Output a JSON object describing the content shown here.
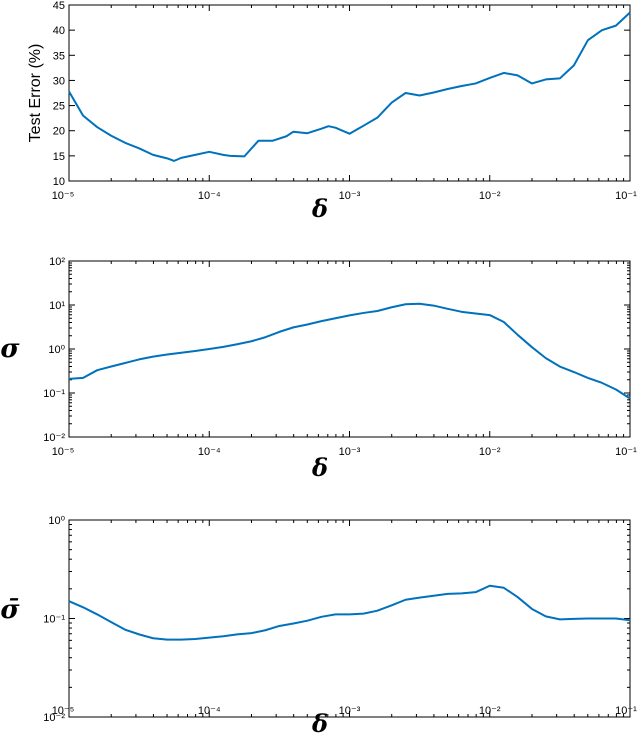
{
  "chart_data": [
    {
      "type": "line",
      "xscale": "log",
      "yscale": "linear",
      "xlim": [
        1e-05,
        0.1
      ],
      "ylim": [
        10,
        45
      ],
      "yticks": [
        "10",
        "15",
        "20",
        "25",
        "30",
        "35",
        "40",
        "45"
      ],
      "xlabel": "δ",
      "ylabel": "Test Error (%)",
      "series": [
        {
          "color": "#0072BD",
          "x": [
            1e-05,
            1.26e-05,
            1.59e-05,
            2e-05,
            2.51e-05,
            3.16e-05,
            3.98e-05,
            5.01e-05,
            5.62e-05,
            6.31e-05,
            7.94e-05,
            0.0001,
            0.000126,
            0.000141,
            0.000178,
            0.000224,
            0.000282,
            0.000355,
            0.000398,
            0.000501,
            0.000631,
            0.000708,
            0.000794,
            0.001,
            0.00126,
            0.00158,
            0.002,
            0.00251,
            0.00316,
            0.00398,
            0.00501,
            0.00631,
            0.00794,
            0.01,
            0.0126,
            0.0158,
            0.02,
            0.0251,
            0.0316,
            0.0398,
            0.0501,
            0.0631,
            0.0794,
            0.1
          ],
          "y": [
            27.8,
            23.0,
            20.7,
            19.0,
            17.6,
            16.5,
            15.2,
            14.5,
            14.0,
            14.6,
            15.2,
            15.8,
            15.2,
            15.0,
            14.9,
            18.0,
            18.0,
            18.9,
            19.8,
            19.5,
            20.4,
            20.9,
            20.6,
            19.4,
            21.0,
            22.6,
            25.6,
            27.5,
            27.0,
            27.6,
            28.3,
            28.9,
            29.4,
            30.5,
            31.5,
            31.0,
            29.4,
            30.2,
            30.4,
            33.0,
            38.0,
            40.0,
            40.9,
            43.5
          ]
        }
      ]
    },
    {
      "type": "line",
      "xscale": "log",
      "yscale": "log",
      "xlim": [
        1e-05,
        0.1
      ],
      "ylim": [
        0.01,
        100
      ],
      "xlabel": "δ",
      "ylabel": "σ",
      "series": [
        {
          "color": "#0072BD",
          "x": [
            1e-05,
            1.26e-05,
            1.59e-05,
            2e-05,
            2.51e-05,
            3.16e-05,
            3.98e-05,
            5.01e-05,
            6.31e-05,
            7.94e-05,
            0.0001,
            0.000126,
            0.000158,
            0.0002,
            0.000251,
            0.000316,
            0.000398,
            0.000501,
            0.000631,
            0.000794,
            0.001,
            0.00126,
            0.00158,
            0.002,
            0.00251,
            0.00316,
            0.00398,
            0.00501,
            0.00631,
            0.00794,
            0.01,
            0.0126,
            0.0158,
            0.02,
            0.0251,
            0.0316,
            0.0398,
            0.0501,
            0.0631,
            0.0794,
            0.1
          ],
          "y": [
            0.21,
            0.22,
            0.33,
            0.4,
            0.48,
            0.58,
            0.67,
            0.75,
            0.82,
            0.9,
            1.0,
            1.12,
            1.28,
            1.5,
            1.85,
            2.45,
            3.1,
            3.6,
            4.3,
            5.0,
            5.8,
            6.6,
            7.3,
            8.9,
            10.4,
            10.7,
            9.7,
            8.2,
            7.0,
            6.4,
            5.9,
            4.1,
            2.1,
            1.1,
            0.62,
            0.4,
            0.3,
            0.22,
            0.17,
            0.12,
            0.075
          ]
        }
      ]
    },
    {
      "type": "line",
      "xscale": "log",
      "yscale": "log",
      "xlim": [
        1e-05,
        0.1
      ],
      "ylim": [
        0.01,
        1
      ],
      "xlabel": "δ",
      "ylabel": "σ̄",
      "series": [
        {
          "color": "#0072BD",
          "x": [
            1e-05,
            1.26e-05,
            1.59e-05,
            2e-05,
            2.51e-05,
            3.16e-05,
            3.98e-05,
            5.01e-05,
            6.31e-05,
            7.94e-05,
            0.0001,
            0.000126,
            0.000158,
            0.0002,
            0.000251,
            0.000316,
            0.000398,
            0.000501,
            0.000631,
            0.000794,
            0.001,
            0.00126,
            0.00158,
            0.002,
            0.00251,
            0.00316,
            0.00398,
            0.00501,
            0.00631,
            0.00794,
            0.01,
            0.0126,
            0.0158,
            0.02,
            0.0251,
            0.0316,
            0.0398,
            0.0501,
            0.0631,
            0.0794,
            0.1
          ],
          "y": [
            0.15,
            0.13,
            0.11,
            0.092,
            0.077,
            0.069,
            0.063,
            0.061,
            0.061,
            0.062,
            0.064,
            0.066,
            0.069,
            0.071,
            0.076,
            0.084,
            0.089,
            0.095,
            0.104,
            0.11,
            0.11,
            0.112,
            0.12,
            0.136,
            0.155,
            0.163,
            0.17,
            0.178,
            0.18,
            0.185,
            0.215,
            0.205,
            0.165,
            0.125,
            0.105,
            0.098,
            0.099,
            0.1,
            0.1,
            0.1,
            0.096
          ]
        }
      ]
    }
  ]
}
